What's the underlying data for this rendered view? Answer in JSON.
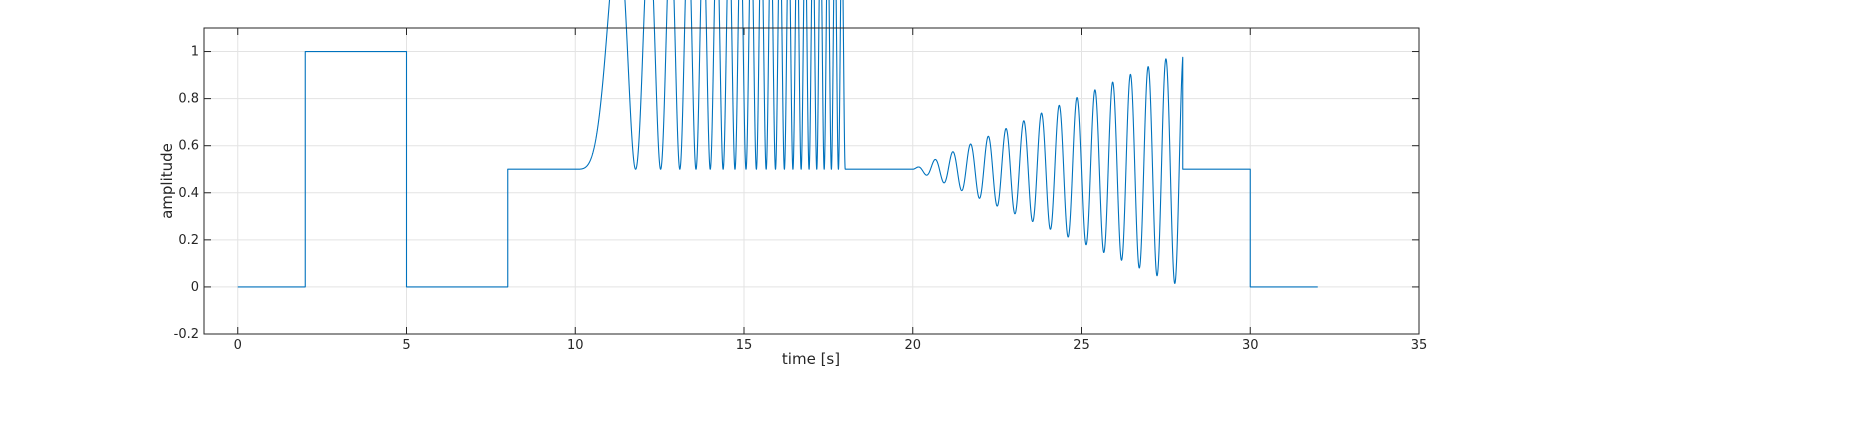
{
  "chart_data": {
    "type": "line",
    "xlabel": "time [s]",
    "ylabel": "amplitude",
    "xlim": [
      -1,
      35
    ],
    "ylim": [
      -0.2,
      1.1
    ],
    "xticks": [
      0,
      5,
      10,
      15,
      20,
      25,
      30,
      35
    ],
    "yticks": [
      -0.2,
      0,
      0.2,
      0.4,
      0.6,
      0.8,
      1
    ],
    "xtick_labels": [
      "0",
      "5",
      "10",
      "15",
      "20",
      "25",
      "30",
      "35"
    ],
    "ytick_labels": [
      "-0.2",
      "0",
      "0.2",
      "0.4",
      "0.6",
      "0.8",
      "1"
    ],
    "grid": true,
    "line_color": "#0072BD",
    "series": [
      {
        "segments": [
          {
            "kind": "constant",
            "t": [
              0,
              2
            ],
            "value": 0
          },
          {
            "kind": "constant",
            "t": [
              2,
              5
            ],
            "value": 1
          },
          {
            "kind": "constant",
            "t": [
              5,
              8
            ],
            "value": 0
          },
          {
            "kind": "constant",
            "t": [
              8,
              10
            ],
            "value": 0.5
          },
          {
            "kind": "chirp",
            "t": [
              10,
              18
            ],
            "offset": 0.5,
            "amplitude": 0.5,
            "f_start_hz": 0.0,
            "f_end_hz": 5.0
          },
          {
            "kind": "constant",
            "t": [
              18,
              20
            ],
            "value": 0.5
          },
          {
            "kind": "growing_sine",
            "t": [
              20,
              28
            ],
            "offset": 0.5,
            "amplitude_start": 0.0,
            "amplitude_end": 0.5,
            "frequency_hz": 1.9
          },
          {
            "kind": "constant",
            "t": [
              28,
              30
            ],
            "value": 0.5
          },
          {
            "kind": "constant",
            "t": [
              30,
              32
            ],
            "value": 0
          }
        ]
      }
    ]
  }
}
